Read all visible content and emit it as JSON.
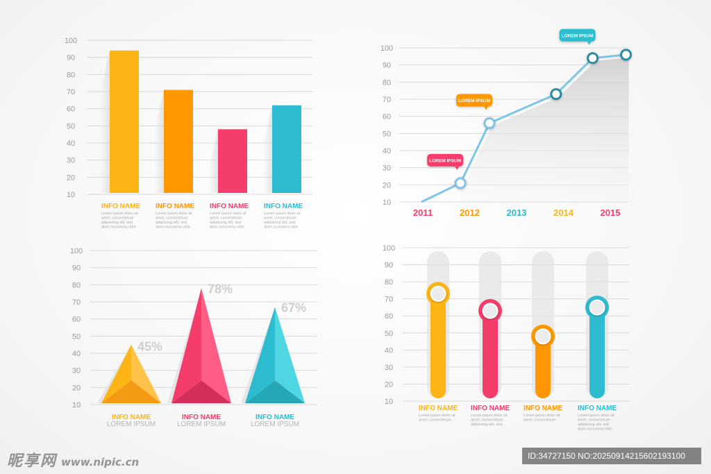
{
  "colors": {
    "yellow": "#FDB515",
    "orange": "#FF9800",
    "pink": "#F43D6B",
    "teal": "#2DBCCF",
    "blue": "#7EC3E8",
    "grid": "#d9d9d9"
  },
  "chart_data": [
    {
      "type": "bar",
      "ylim": [
        10,
        100
      ],
      "yticks": [
        100,
        90,
        80,
        70,
        60,
        50,
        40,
        30,
        20,
        10
      ],
      "values": [
        94,
        71,
        48,
        62
      ],
      "colors": [
        "#FDB515",
        "#FF9800",
        "#F43D6B",
        "#2DBCCF"
      ],
      "labels": [
        {
          "a": "INFO",
          "b": "NAME",
          "color": "#FDB515",
          "text": [
            "Lorem ipsum dolor sit",
            "amet, consectetuer",
            "adipiscing elit, sed",
            "diam nonummy nibh"
          ]
        },
        {
          "a": "INFO",
          "b": "NAME",
          "color": "#FF9800",
          "text": [
            "Lorem ipsum dolor sit",
            "amet, consectetuer",
            "adipiscing elit, sed",
            "diam nonummy nibh"
          ]
        },
        {
          "a": "INFO",
          "b": "NAME",
          "color": "#F43D6B",
          "text": [
            "Lorem ipsum dolor sit",
            "amet, consectetuer",
            "adipiscing elit, sed",
            "diam nonummy nibh"
          ]
        },
        {
          "a": "INFO",
          "b": "NAME",
          "color": "#2DBCCF",
          "text": [
            "Lorem ipsum dolor sit",
            "amet, consectetuer",
            "adipiscing elit, sed",
            "diam nonummy nibh"
          ]
        }
      ]
    },
    {
      "type": "line",
      "ylim": [
        10,
        100
      ],
      "yticks": [
        100,
        90,
        80,
        70,
        60,
        50,
        40,
        30,
        20,
        10
      ],
      "x_labels": [
        "2011",
        "2012",
        "2013",
        "2014",
        "2015"
      ],
      "x_label_colors": [
        "#F43D6B",
        "#FF9800",
        "#2DBCCF",
        "#FDB515",
        "#F43D6B"
      ],
      "points": [
        {
          "x": 0.0,
          "y": 10
        },
        {
          "x": 0.82,
          "y": 21
        },
        {
          "x": 1.43,
          "y": 56
        },
        {
          "x": 2.83,
          "y": 73
        },
        {
          "x": 3.6,
          "y": 94
        },
        {
          "x": 4.3,
          "y": 96
        }
      ],
      "callouts": [
        {
          "text": "LOREM IPSUM",
          "color": "#F43D6B",
          "point": 1
        },
        {
          "text": "LOREM IPSUM",
          "color": "#FF9800",
          "point": 2
        },
        {
          "text": "LOREM IPSUM",
          "color": "#2DBCCF",
          "point": 4
        }
      ]
    },
    {
      "type": "bar",
      "style": "pyramid",
      "ylim": [
        10,
        100
      ],
      "yticks": [
        100,
        90,
        80,
        70,
        60,
        50,
        40,
        30,
        20,
        10
      ],
      "values": [
        45,
        78,
        67
      ],
      "value_labels": [
        "45%",
        "78%",
        "67%"
      ],
      "colors": [
        "#FDB515",
        "#F43D6B",
        "#2DBCCF"
      ],
      "labels": [
        {
          "a": "INFO",
          "b": "NAME",
          "color": "#FDB515",
          "sub": "LOREM IPSUM"
        },
        {
          "a": "INFO",
          "b": "NAME",
          "color": "#F43D6B",
          "sub": "LOREM IPSUM"
        },
        {
          "a": "INFO",
          "b": "NAME",
          "color": "#2DBCCF",
          "sub": "LOREM IPSUM"
        }
      ]
    },
    {
      "type": "bar",
      "style": "thermometer",
      "ylim": [
        10,
        100
      ],
      "yticks": [
        100,
        90,
        80,
        70,
        60,
        50,
        40,
        30,
        20,
        10
      ],
      "values": [
        73,
        63,
        48,
        65
      ],
      "colors": [
        "#FDB515",
        "#F43D6B",
        "#FF9800",
        "#2DBCCF"
      ],
      "labels": [
        {
          "a": "INFO",
          "b": "NAME",
          "color": "#FDB515",
          "text": [
            "Lorem ipsum dolor sit",
            "amet, consectetuer"
          ]
        },
        {
          "a": "INFO",
          "b": "NAME",
          "color": "#F43D6B",
          "text": [
            "Lorem ipsum dolor sit",
            "amet, consectetuer",
            "adipiscing elit, sed"
          ]
        },
        {
          "a": "INFO",
          "b": "NAME",
          "color": "#FF9800",
          "text": [
            "Lorem ipsum dolor sit",
            "amet, consectetuer"
          ]
        },
        {
          "a": "INFO",
          "b": "NAME",
          "color": "#2DBCCF",
          "text": [
            "Lorem ipsum dolor sit",
            "amet, consectetuer",
            "adipiscing elit, sed",
            "diam nonummy nibh"
          ]
        }
      ]
    }
  ],
  "watermark": {
    "left_logo": "昵享网",
    "left_url": "www.nipic.cn",
    "right_text": "ID:34727150 NO:20250914215602193100"
  }
}
